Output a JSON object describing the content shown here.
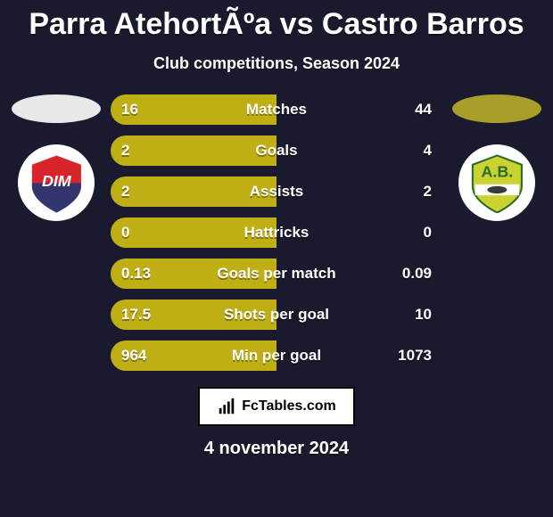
{
  "background_color": "#1a1a2e",
  "title": "Parra AtehortÃºa vs Castro Barros",
  "title_fontsize": 34,
  "subtitle": "Club competitions, Season 2024",
  "subtitle_fontsize": 18,
  "date": "4 november 2024",
  "date_fontsize": 20,
  "sides": {
    "left": {
      "oval_color": "#e8e8e8",
      "badge": {
        "bg": "#ffffff",
        "shield_top": "#d8252a",
        "shield_bottom": "#33356f",
        "text": "DIM",
        "text_color": "#ffffff"
      }
    },
    "right": {
      "oval_color": "#a99e2a",
      "badge": {
        "bg": "#ffffff",
        "shield_fill": "#c9d22e",
        "outline": "#2a6b2a",
        "band": "#ffffff",
        "text": "A.B.",
        "text_color": "#2a6b2a"
      }
    }
  },
  "rows": [
    {
      "left": "16",
      "label": "Matches",
      "right": "44",
      "left_color": "#bfae14",
      "right_color": "#1a1a2e"
    },
    {
      "left": "2",
      "label": "Goals",
      "right": "4",
      "left_color": "#bfae14",
      "right_color": "#1a1a2e"
    },
    {
      "left": "2",
      "label": "Assists",
      "right": "2",
      "left_color": "#bfae14",
      "right_color": "#1a1a2e"
    },
    {
      "left": "0",
      "label": "Hattricks",
      "right": "0",
      "left_color": "#bfae14",
      "right_color": "#1a1a2e"
    },
    {
      "left": "0.13",
      "label": "Goals per match",
      "right": "0.09",
      "left_color": "#bfae14",
      "right_color": "#1a1a2e"
    },
    {
      "left": "17.5",
      "label": "Shots per goal",
      "right": "10",
      "left_color": "#bfae14",
      "right_color": "#1a1a2e"
    },
    {
      "left": "964",
      "label": "Min per goal",
      "right": "1073",
      "left_color": "#bfae14",
      "right_color": "#1a1a2e"
    }
  ],
  "row_style": {
    "height": 34,
    "border_radius": 17,
    "fontsize": 17,
    "gap": 12
  },
  "footer": {
    "brand": "FcTables.com",
    "border": "#000000",
    "bg": "#ffffff",
    "text_color": "#000000"
  }
}
